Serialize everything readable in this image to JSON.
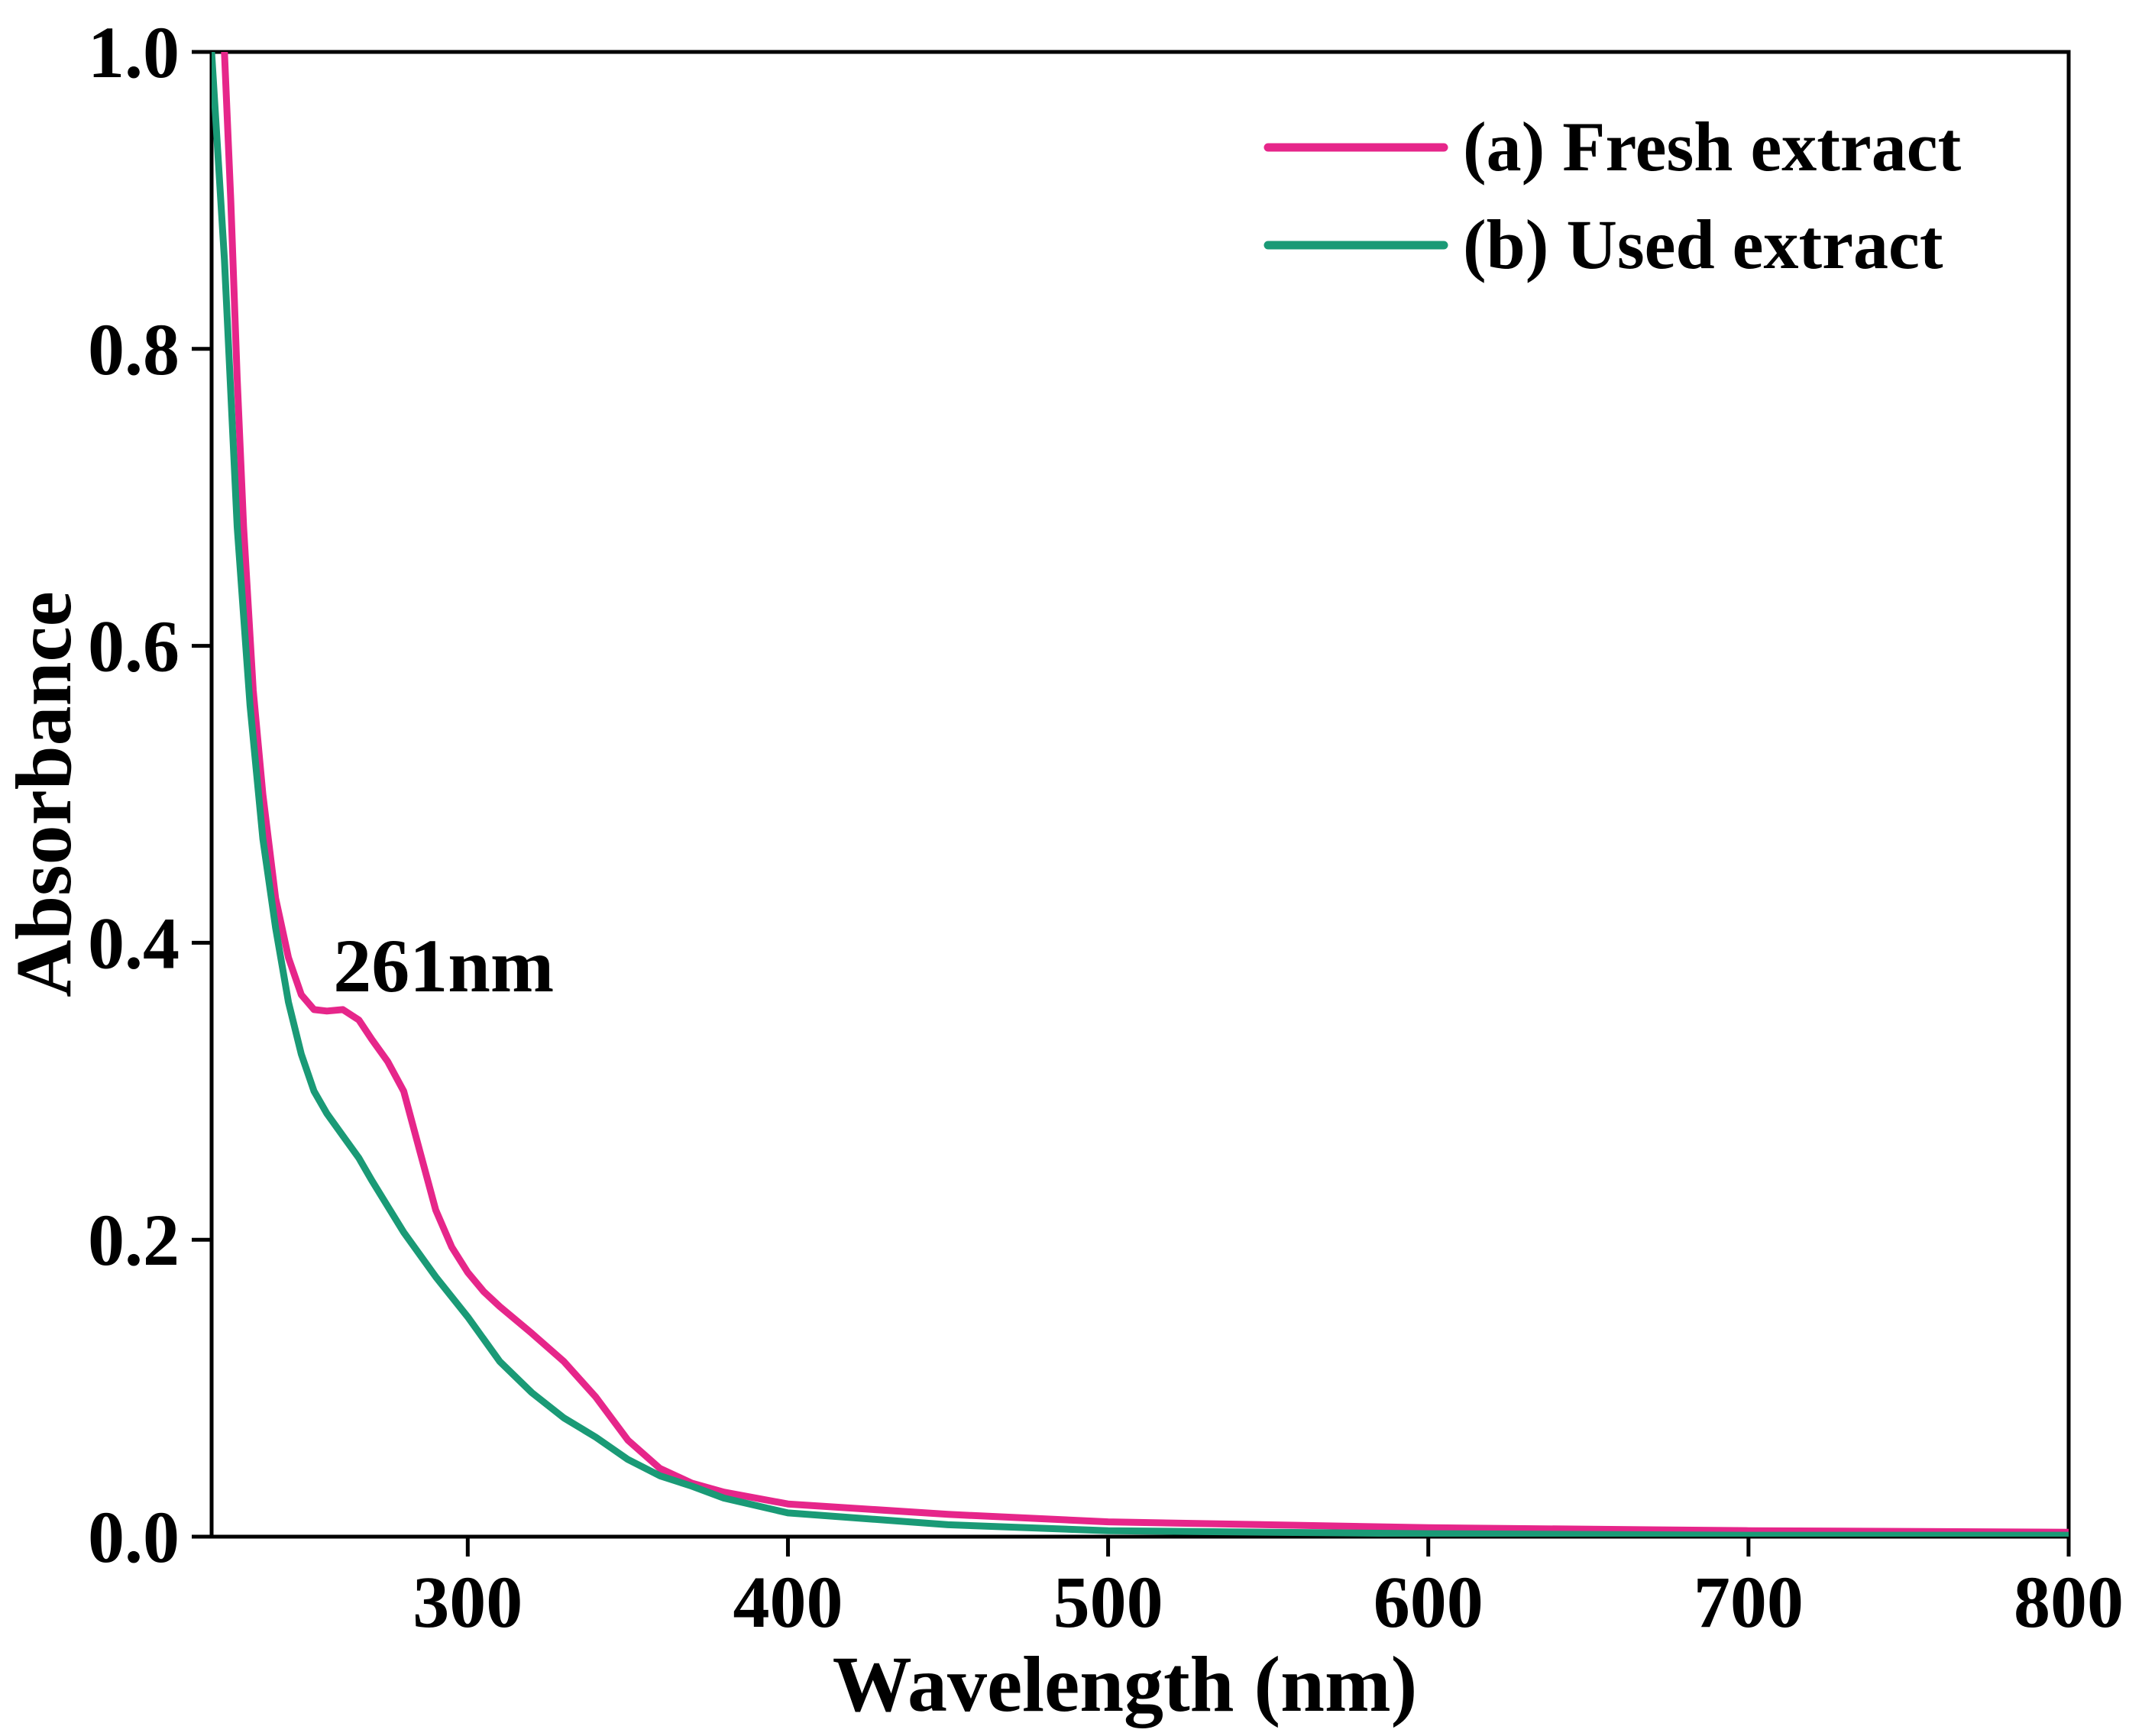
{
  "chart_data": {
    "type": "line",
    "title": "",
    "xlabel": "Wavelength (nm)",
    "ylabel": "Absorbance",
    "xlim": [
      220,
      800
    ],
    "ylim": [
      0.0,
      1.0
    ],
    "xticks": [
      300,
      400,
      500,
      600,
      700,
      800
    ],
    "xtick_labels": [
      "300",
      "400",
      "500",
      "600",
      "700",
      "800"
    ],
    "yticks": [
      0.0,
      0.2,
      0.4,
      0.6,
      0.8,
      1.0
    ],
    "ytick_labels": [
      "0.0",
      "0.2",
      "0.4",
      "0.6",
      "0.8",
      "1.0"
    ],
    "grid": false,
    "legend_position": "top-right",
    "series": [
      {
        "name": "(a) Fresh extract",
        "color": "#e6268a",
        "x": [
          224,
          226,
          228,
          230,
          233,
          236,
          240,
          244,
          248,
          252,
          256,
          261,
          266,
          270,
          275,
          280,
          285,
          290,
          295,
          300,
          305,
          310,
          320,
          330,
          340,
          350,
          360,
          370,
          380,
          400,
          450,
          500,
          600,
          700,
          800
        ],
        "y": [
          1.0,
          0.9,
          0.78,
          0.68,
          0.57,
          0.5,
          0.43,
          0.39,
          0.365,
          0.355,
          0.354,
          0.355,
          0.348,
          0.335,
          0.32,
          0.3,
          0.26,
          0.22,
          0.195,
          0.178,
          0.165,
          0.155,
          0.137,
          0.118,
          0.094,
          0.065,
          0.046,
          0.036,
          0.03,
          0.022,
          0.015,
          0.01,
          0.006,
          0.004,
          0.003
        ]
      },
      {
        "name": "(b) Used extract",
        "color": "#1a9a76",
        "x": [
          220,
          224,
          228,
          232,
          236,
          240,
          244,
          248,
          252,
          256,
          261,
          266,
          270,
          280,
          290,
          300,
          310,
          320,
          330,
          340,
          350,
          360,
          370,
          380,
          400,
          450,
          500,
          600,
          700,
          800
        ],
        "y": [
          1.0,
          0.86,
          0.68,
          0.56,
          0.47,
          0.41,
          0.36,
          0.325,
          0.3,
          0.285,
          0.27,
          0.255,
          0.24,
          0.205,
          0.175,
          0.148,
          0.118,
          0.097,
          0.08,
          0.067,
          0.052,
          0.041,
          0.034,
          0.026,
          0.016,
          0.008,
          0.004,
          0.002,
          0.001,
          0.001
        ]
      }
    ],
    "annotations": [
      {
        "text": "261nm",
        "x": 258,
        "y": 0.39
      }
    ]
  }
}
